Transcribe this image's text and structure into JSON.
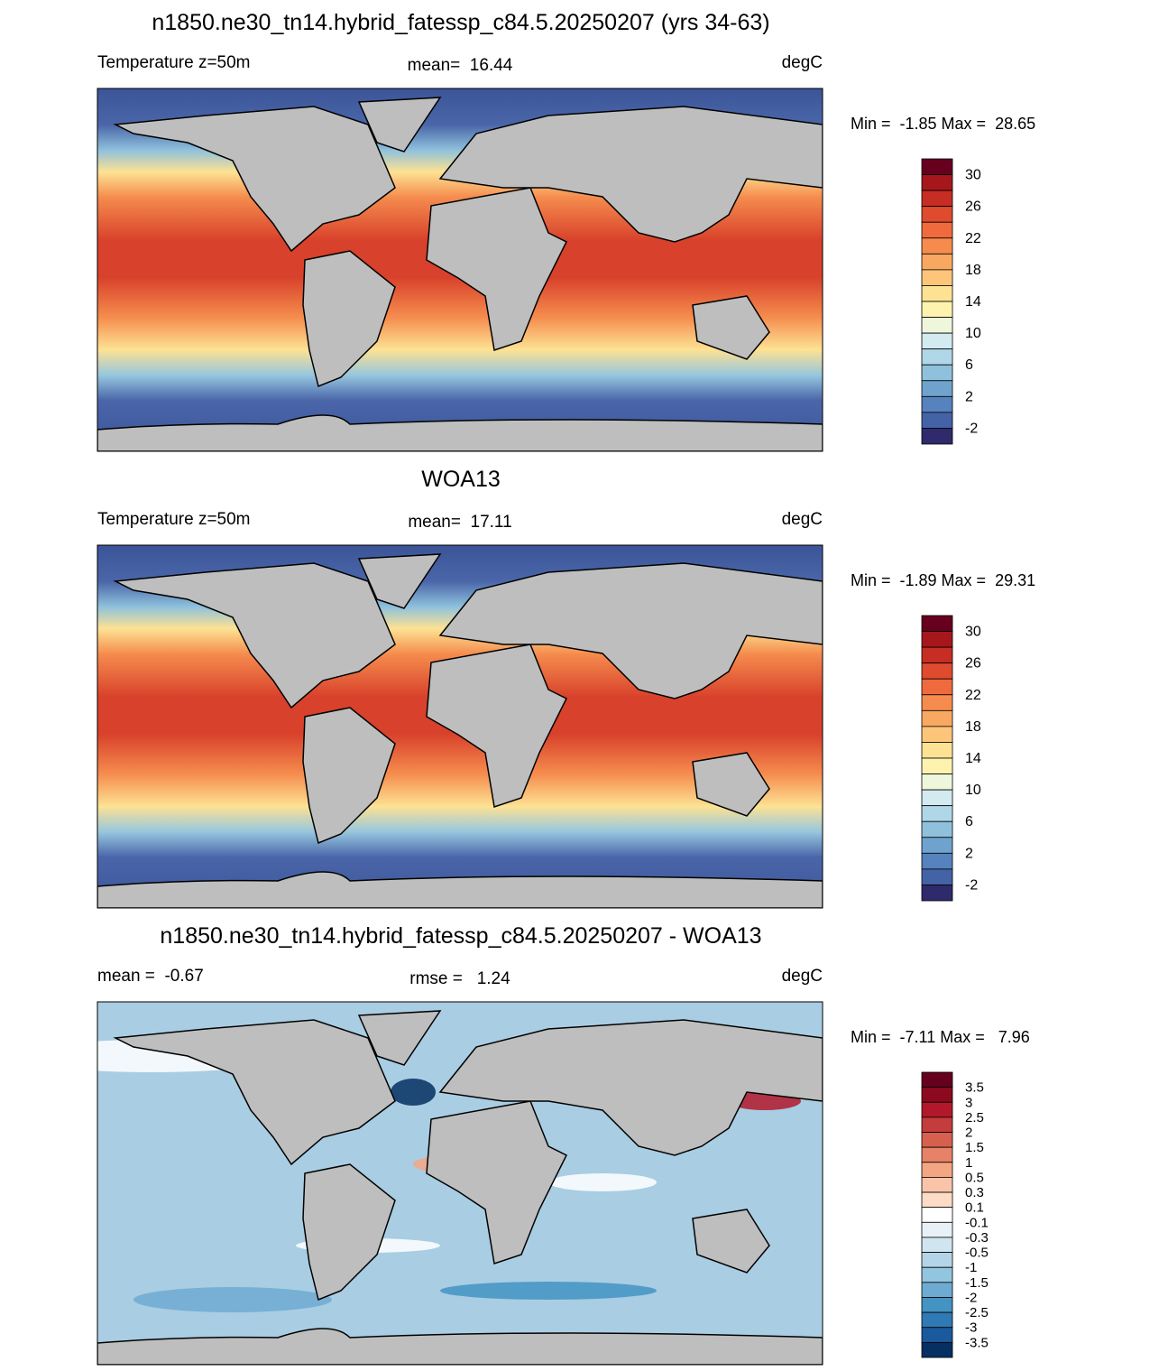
{
  "panels": [
    {
      "title": "n1850.ne30_tn14.hybrid_fatessp_c84.5.20250207 (yrs 34-63)",
      "left": "Temperature z=50m",
      "center": "mean=  16.44",
      "right": "degC",
      "minmax": "Min =  -1.85 Max =  28.65",
      "colorbar": {
        "labels": [
          30,
          26,
          22,
          18,
          14,
          10,
          6,
          2,
          -2
        ],
        "colors": [
          "#67001f",
          "#a6171c",
          "#c62d23",
          "#de4b2f",
          "#ef6a3c",
          "#f58c4e",
          "#f9a862",
          "#fcc57a",
          "#fde293",
          "#fdf3af",
          "#eef6dc",
          "#d2eaf0",
          "#b0d7e8",
          "#8fc1dc",
          "#6fa3cd",
          "#5682bd",
          "#4463a6",
          "#2e2a6b"
        ]
      }
    },
    {
      "title": "WOA13",
      "left": "Temperature z=50m",
      "center": "mean=  17.11",
      "right": "degC",
      "minmax": "Min =  -1.89 Max =  29.31",
      "colorbar": {
        "labels": [
          30,
          26,
          22,
          18,
          14,
          10,
          6,
          2,
          -2
        ],
        "colors": [
          "#67001f",
          "#a6171c",
          "#c62d23",
          "#de4b2f",
          "#ef6a3c",
          "#f58c4e",
          "#f9a862",
          "#fcc57a",
          "#fde293",
          "#fdf3af",
          "#eef6dc",
          "#d2eaf0",
          "#b0d7e8",
          "#8fc1dc",
          "#6fa3cd",
          "#5682bd",
          "#4463a6",
          "#2e2a6b"
        ]
      }
    },
    {
      "title": "n1850.ne30_tn14.hybrid_fatessp_c84.5.20250207 - WOA13",
      "left": "mean =  -0.67",
      "center": "rmse =   1.24",
      "right": "degC",
      "minmax": "Min =  -7.11 Max =   7.96",
      "colorbar": {
        "labels": [
          3.5,
          3,
          2.5,
          2,
          1.5,
          1,
          0.5,
          0.3,
          0.1,
          -0.1,
          -0.3,
          -0.5,
          -1,
          -1.5,
          -2,
          -2.5,
          -3,
          -3.5
        ],
        "colors": [
          "#67001f",
          "#8b0a1f",
          "#b2182b",
          "#c43c3c",
          "#d6604d",
          "#e58267",
          "#f4a582",
          "#f9c4a9",
          "#fddbc7",
          "#ffffff",
          "#e8f1f7",
          "#d1e5f0",
          "#b4d5e8",
          "#92c5de",
          "#6eaad1",
          "#4393c3",
          "#2f79b5",
          "#1a5a9c",
          "#053061"
        ]
      }
    }
  ]
}
